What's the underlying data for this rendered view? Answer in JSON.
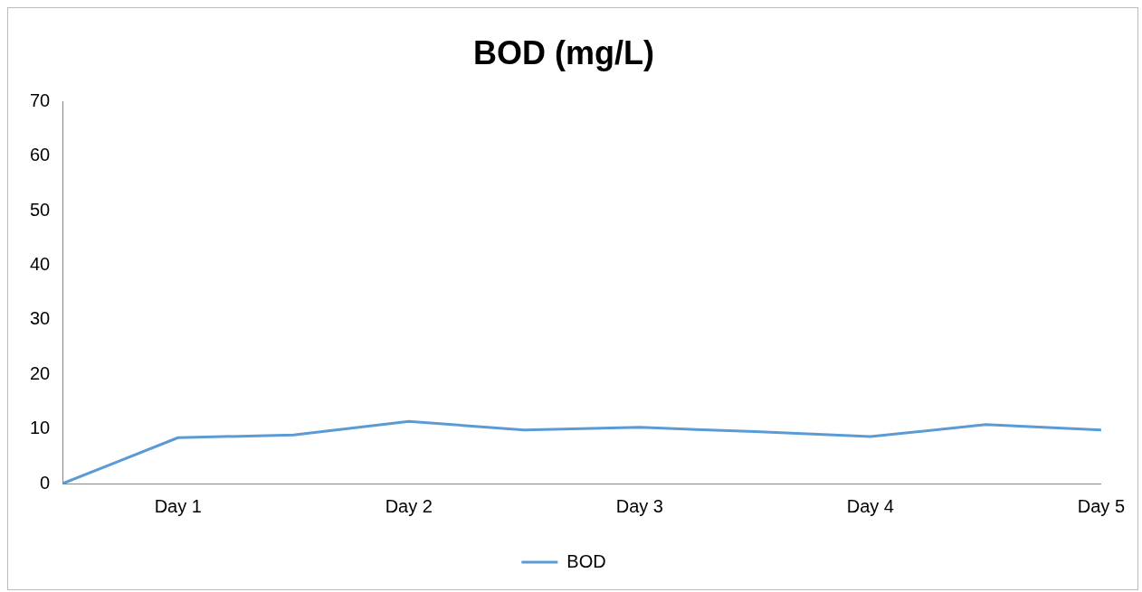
{
  "chart_data": {
    "type": "line",
    "title": "BOD (mg/L)",
    "categories": [
      null,
      "Day 1",
      null,
      "Day 2",
      null,
      "Day 3",
      null,
      "Day 4",
      null,
      "Day 5"
    ],
    "series": [
      {
        "name": "BOD",
        "color": "#5b9bd5",
        "values": [
          0,
          8.4,
          8.9,
          11.4,
          9.8,
          10.3,
          9.5,
          8.6,
          10.8,
          9.8
        ]
      }
    ],
    "ylim": [
      0,
      70
    ],
    "yticks": [
      0,
      10,
      20,
      30,
      40,
      50,
      60,
      70
    ],
    "grid": false,
    "legend": "bottom",
    "marker": "none"
  }
}
